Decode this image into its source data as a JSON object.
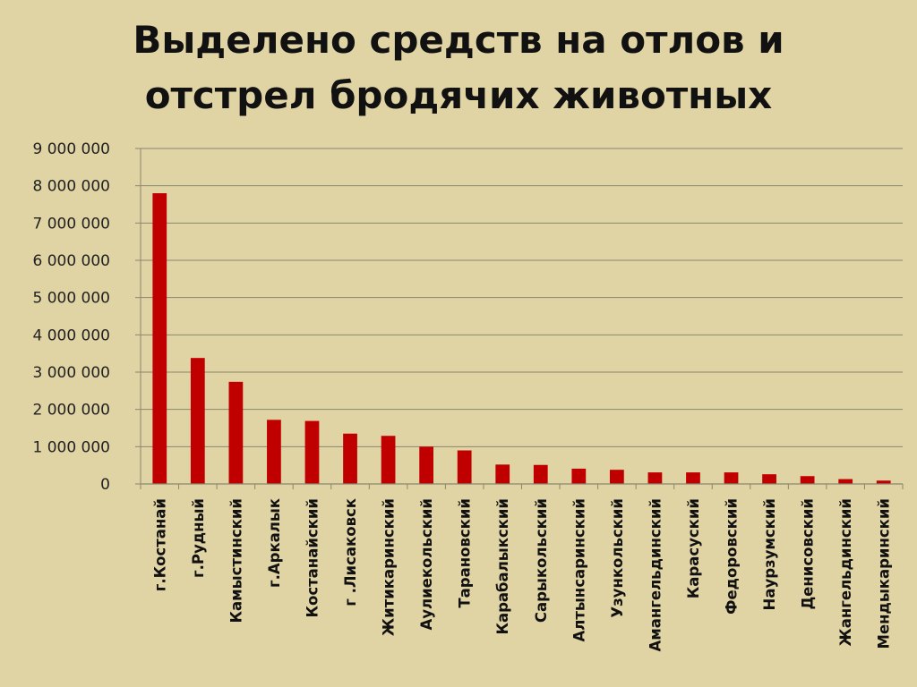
{
  "colors": {
    "background": "#e0d3a4",
    "bar": "#c00000",
    "gridline": "#8a8670",
    "axis": "#8a8670",
    "text": "#111111"
  },
  "chart_data": {
    "type": "bar",
    "title_lines": [
      "Выделено средств на отлов и",
      "отстрел бродячих животных"
    ],
    "xlabel": "",
    "ylabel": "",
    "ylim": [
      0,
      9000000
    ],
    "y_ticks": [
      0,
      1000000,
      2000000,
      3000000,
      4000000,
      5000000,
      6000000,
      7000000,
      8000000,
      9000000
    ],
    "y_tick_labels": [
      "0",
      "1 000 000",
      "2 000 000",
      "3 000 000",
      "4 000 000",
      "5 000 000",
      "6 000 000",
      "7 000 000",
      "8 000 000",
      "9 000 000"
    ],
    "grid": true,
    "legend": "none",
    "categories": [
      "г.Костанай",
      "г.Рудный",
      "Камыстинский",
      "г.Аркалык",
      "Костанайский",
      "г .Лисаковск",
      "Житикаринский",
      "Аулиекольский",
      "Тарановский",
      "Карабалыкский",
      "Сарыкольский",
      "Алтынсаринский",
      "Узункольский",
      "Амангельдинский",
      "Карасуский",
      "Федоровский",
      "Наурзумский",
      "Денисовский",
      "Жангельдинский",
      "Мендыкаринский"
    ],
    "values": [
      7800000,
      3380000,
      2740000,
      1720000,
      1690000,
      1350000,
      1290000,
      1000000,
      900000,
      520000,
      510000,
      410000,
      380000,
      310000,
      310000,
      310000,
      260000,
      210000,
      130000,
      90000
    ]
  }
}
